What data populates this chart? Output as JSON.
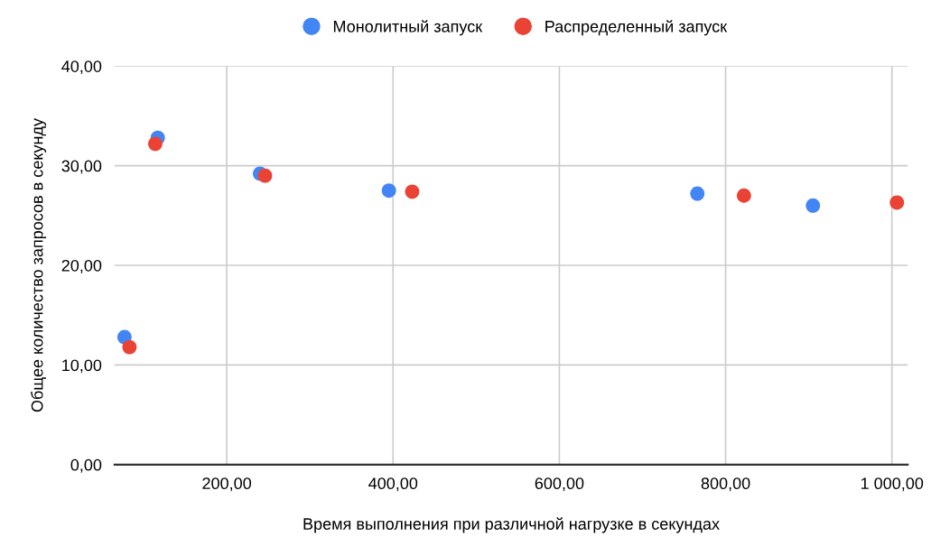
{
  "chart_data": {
    "type": "scatter",
    "xlabel": "Время выполнения при различной нагрузке в секундах",
    "ylabel": "Общее количество запросов в секунду",
    "series": [
      {
        "name": "Монолитный запуск",
        "color": "#4285f4",
        "x": [
          77,
          117,
          240,
          395,
          766,
          905
        ],
        "values": [
          12.8,
          32.8,
          29.2,
          27.5,
          27.2,
          26.0
        ]
      },
      {
        "name": "Распределенный запуск",
        "color": "#ea4335",
        "x": [
          83,
          114,
          246,
          423,
          822,
          1006
        ],
        "values": [
          11.8,
          32.2,
          29.0,
          27.4,
          27.0,
          26.3
        ]
      }
    ],
    "xlim": [
      65,
      1019
    ],
    "ylim": [
      0,
      40
    ],
    "xticks": [
      {
        "value": 200,
        "label": "200,00"
      },
      {
        "value": 400,
        "label": "400,00"
      },
      {
        "value": 600,
        "label": "600,00"
      },
      {
        "value": 800,
        "label": "800,00"
      },
      {
        "value": 1000,
        "label": "1 000,00"
      }
    ],
    "yticks": [
      {
        "value": 0,
        "label": "0,00"
      },
      {
        "value": 10,
        "label": "10,00"
      },
      {
        "value": 20,
        "label": "20,00"
      },
      {
        "value": 30,
        "label": "30,00"
      },
      {
        "value": 40,
        "label": "40,00"
      }
    ],
    "grid": true,
    "legend": "top",
    "marker": "circle"
  }
}
